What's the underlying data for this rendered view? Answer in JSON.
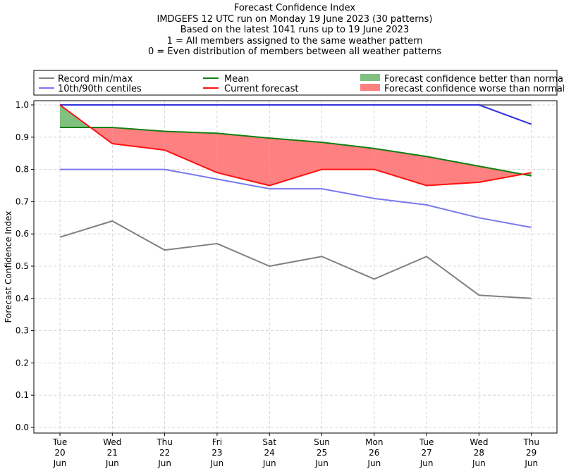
{
  "title_lines": [
    "Forecast Confidence Index",
    "IMDGEFS 12 UTC run on Monday 19 June 2023 (30 patterns)",
    "Based on the latest 1041 runs up to 19 June 2023",
    "1 = All members assigned to the same weather pattern",
    "0 = Even distribution of members between all weather patterns"
  ],
  "legend": {
    "record": "Record min/max",
    "centiles": "10th/90th centiles",
    "mean": "Mean",
    "current": "Current forecast",
    "better": "Forecast confidence better than normal",
    "worse": "Forecast confidence worse than normal"
  },
  "colors": {
    "record": "#808080",
    "centiles": "#7878f0",
    "max_line": "#3030e0",
    "mean": "#128012",
    "current": "#ff1010",
    "better": "#80c080",
    "worse": "#ff8080"
  },
  "chart_data": {
    "type": "line",
    "ylabel": "Forecast Confidence Index",
    "xlabel": "",
    "ylim": [
      0,
      1
    ],
    "yticks": [
      0.0,
      0.1,
      0.2,
      0.3,
      0.4,
      0.5,
      0.6,
      0.7,
      0.8,
      0.9,
      1.0
    ],
    "ytick_labels": [
      "0.0",
      "0.1",
      "0.2",
      "0.3",
      "0.4",
      "0.5",
      "0.6",
      "0.7",
      "0.8",
      "0.9",
      "1.0"
    ],
    "grid": true,
    "legend_position": "top",
    "categories": [
      [
        "Tue",
        "20",
        "Jun"
      ],
      [
        "Wed",
        "21",
        "Jun"
      ],
      [
        "Thu",
        "22",
        "Jun"
      ],
      [
        "Fri",
        "23",
        "Jun"
      ],
      [
        "Sat",
        "24",
        "Jun"
      ],
      [
        "Sun",
        "25",
        "Jun"
      ],
      [
        "Mon",
        "26",
        "Jun"
      ],
      [
        "Tue",
        "27",
        "Jun"
      ],
      [
        "Wed",
        "28",
        "Jun"
      ],
      [
        "Thu",
        "29",
        "Jun"
      ]
    ],
    "series": {
      "record_min": [
        0.59,
        0.64,
        0.55,
        0.57,
        0.5,
        0.53,
        0.46,
        0.53,
        0.41,
        0.4
      ],
      "record_max": [
        1.0,
        1.0,
        1.0,
        1.0,
        1.0,
        1.0,
        1.0,
        1.0,
        1.0,
        1.0
      ],
      "centile_10": [
        0.8,
        0.8,
        0.8,
        0.77,
        0.74,
        0.74,
        0.71,
        0.69,
        0.65,
        0.62
      ],
      "centile_90": [
        1.0,
        1.0,
        1.0,
        1.0,
        1.0,
        1.0,
        1.0,
        1.0,
        1.0,
        0.94
      ],
      "mean": [
        0.93,
        0.93,
        0.918,
        0.912,
        0.897,
        0.884,
        0.865,
        0.84,
        0.81,
        0.78
      ],
      "current": [
        1.0,
        0.88,
        0.86,
        0.79,
        0.75,
        0.8,
        0.8,
        0.75,
        0.76,
        0.79
      ]
    }
  }
}
